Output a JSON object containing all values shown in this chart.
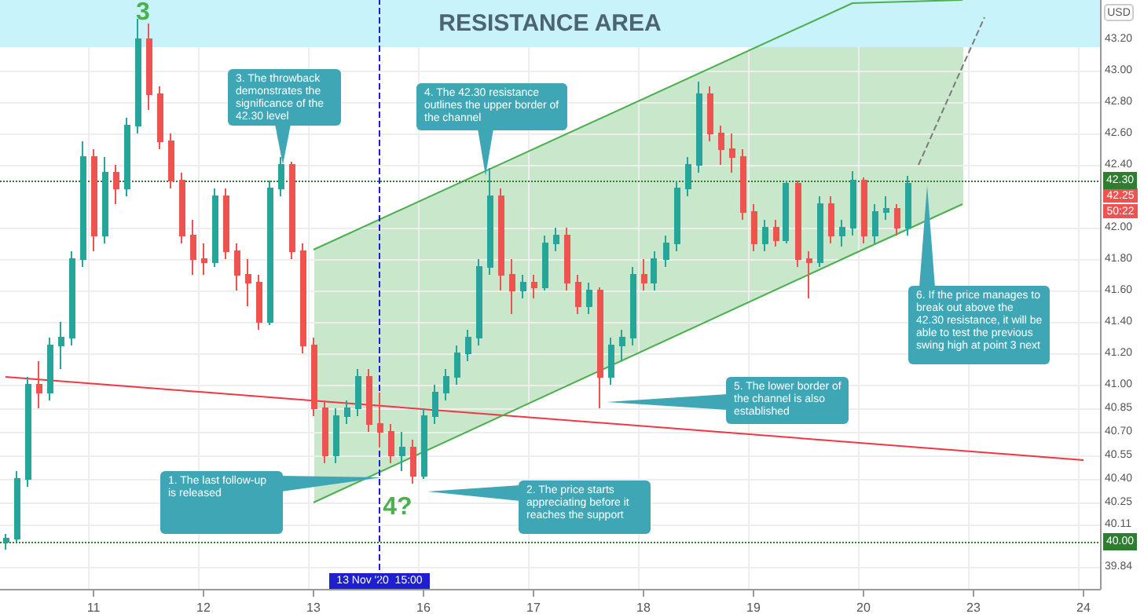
{
  "chart_data": {
    "type": "candlestick",
    "ylabel": "USD",
    "categories": [
      null,
      null,
      null,
      null,
      null,
      null,
      null,
      null,
      "11",
      null,
      null,
      null,
      null,
      null,
      null,
      null,
      null,
      null,
      "12",
      null,
      null,
      null,
      null,
      null,
      null,
      null,
      null,
      null,
      "13",
      null,
      null,
      null,
      null,
      null,
      "13 Nov '20  15:00",
      null,
      null,
      null,
      "16",
      null,
      null,
      null,
      null,
      null,
      null,
      null,
      null,
      null,
      "17",
      null,
      null,
      null,
      null,
      null,
      null,
      null,
      null,
      null,
      "18",
      null,
      null,
      null,
      null,
      null,
      null,
      null,
      null,
      null,
      "19",
      null,
      null,
      null,
      null,
      null,
      null,
      null,
      null,
      null,
      "20",
      null,
      null,
      null,
      null,
      null,
      null,
      null,
      null,
      null,
      "23",
      null,
      null,
      null,
      null,
      null,
      null,
      null,
      null,
      null,
      "24",
      null
    ],
    "ylim": [
      39.7,
      43.45
    ],
    "yticks": [
      {
        "value": 39.84,
        "label": "39.84"
      },
      {
        "value": 40.11,
        "label": "40.11"
      },
      {
        "value": 40.25,
        "label": "40.25"
      },
      {
        "value": 40.4,
        "label": "40.40"
      },
      {
        "value": 40.55,
        "label": "40.55"
      },
      {
        "value": 40.7,
        "label": "40.70"
      },
      {
        "value": 40.85,
        "label": "40.85"
      },
      {
        "value": 41,
        "label": "41.00"
      },
      {
        "value": 41.2,
        "label": "41.20"
      },
      {
        "value": 41.4,
        "label": "41.40"
      },
      {
        "value": 41.6,
        "label": "41.60"
      },
      {
        "value": 41.8,
        "label": "41.80"
      },
      {
        "value": 42,
        "label": "42.00"
      },
      {
        "value": 42.4,
        "label": "42.40"
      },
      {
        "value": 42.6,
        "label": "42.60"
      },
      {
        "value": 42.8,
        "label": "42.80"
      },
      {
        "value": 43,
        "label": "43.00"
      },
      {
        "value": 43.2,
        "label": "43.20"
      }
    ],
    "grid": true,
    "series": [
      {
        "ohlc": [
          [
            40,
            40.05,
            39.95,
            40.02
          ],
          [
            40.02,
            40.45,
            40,
            40.4
          ],
          [
            40.4,
            41.05,
            40.35,
            41
          ],
          [
            41,
            41.15,
            40.85,
            40.95
          ],
          [
            40.95,
            41.3,
            40.9,
            41.25
          ],
          [
            41.25,
            41.4,
            41.1,
            41.3
          ],
          [
            41.3,
            41.85,
            41.25,
            41.8
          ],
          [
            41.8,
            42.55,
            41.75,
            42.45
          ],
          [
            42.45,
            42.5,
            41.85,
            41.95
          ],
          [
            41.95,
            42.45,
            41.9,
            42.35
          ],
          [
            42.35,
            42.4,
            42.15,
            42.25
          ],
          [
            42.25,
            42.7,
            42.2,
            42.65
          ],
          [
            42.65,
            43.33,
            42.6,
            43.2
          ],
          [
            43.2,
            43.3,
            42.75,
            42.85
          ],
          [
            42.85,
            42.9,
            42.5,
            42.55
          ],
          [
            42.55,
            42.6,
            42.25,
            42.3
          ],
          [
            42.3,
            42.35,
            41.9,
            41.95
          ],
          [
            41.95,
            42.05,
            41.7,
            41.8
          ],
          [
            41.8,
            41.9,
            41.7,
            41.78
          ],
          [
            41.78,
            42.25,
            41.75,
            42.2
          ],
          [
            42.2,
            42.25,
            41.8,
            41.85
          ],
          [
            41.85,
            41.9,
            41.6,
            41.7
          ],
          [
            41.7,
            41.8,
            41.5,
            41.65
          ],
          [
            41.65,
            41.7,
            41.35,
            41.4
          ],
          [
            41.4,
            42.3,
            41.38,
            42.25
          ],
          [
            42.25,
            42.45,
            42.2,
            42.4
          ],
          [
            42.4,
            42.42,
            41.8,
            41.85
          ],
          [
            41.85,
            41.9,
            41.2,
            41.25
          ],
          [
            41.25,
            41.3,
            40.8,
            40.85
          ],
          [
            40.85,
            40.9,
            40.5,
            40.55
          ],
          [
            40.55,
            40.85,
            40.5,
            40.8
          ],
          [
            40.8,
            40.9,
            40.75,
            40.85
          ],
          [
            40.85,
            41.1,
            40.8,
            41.05
          ],
          [
            41.05,
            41.1,
            40.7,
            40.75
          ],
          [
            40.75,
            40.95,
            40.6,
            40.7
          ],
          [
            40.7,
            40.75,
            40.5,
            40.55
          ],
          [
            40.55,
            40.7,
            40.45,
            40.6
          ],
          [
            40.6,
            40.65,
            40.37,
            40.42
          ],
          [
            40.42,
            40.85,
            40.4,
            40.8
          ],
          [
            40.8,
            41,
            40.75,
            40.95
          ],
          [
            40.95,
            41.1,
            40.9,
            41.05
          ],
          [
            41.05,
            41.25,
            41,
            41.2
          ],
          [
            41.2,
            41.35,
            41.15,
            41.3
          ],
          [
            41.3,
            41.8,
            41.25,
            41.75
          ],
          [
            41.75,
            42.38,
            41.7,
            42.2
          ],
          [
            42.2,
            42.25,
            41.6,
            41.7
          ],
          [
            41.7,
            41.8,
            41.45,
            41.6
          ],
          [
            41.6,
            41.7,
            41.55,
            41.65
          ],
          [
            41.65,
            41.7,
            41.55,
            41.62
          ],
          [
            41.62,
            41.95,
            41.6,
            41.9
          ],
          [
            41.9,
            42,
            41.85,
            41.95
          ],
          [
            41.95,
            42,
            41.6,
            41.65
          ],
          [
            41.65,
            41.7,
            41.45,
            41.5
          ],
          [
            41.5,
            41.65,
            41.45,
            41.6
          ],
          [
            41.6,
            41.62,
            40.85,
            41.05
          ],
          [
            41.05,
            41.3,
            41,
            41.25
          ],
          [
            41.25,
            41.35,
            41.15,
            41.3
          ],
          [
            41.3,
            41.75,
            41.25,
            41.7
          ],
          [
            41.7,
            41.8,
            41.6,
            41.65
          ],
          [
            41.65,
            41.85,
            41.6,
            41.8
          ],
          [
            41.8,
            41.95,
            41.75,
            41.9
          ],
          [
            41.9,
            42.3,
            41.85,
            42.25
          ],
          [
            42.25,
            42.45,
            42.2,
            42.4
          ],
          [
            42.4,
            42.93,
            42.35,
            42.85
          ],
          [
            42.85,
            42.9,
            42.55,
            42.6
          ],
          [
            42.6,
            42.65,
            42.4,
            42.5
          ],
          [
            42.5,
            42.6,
            42.35,
            42.45
          ],
          [
            42.45,
            42.5,
            42.05,
            42.1
          ],
          [
            42.1,
            42.15,
            41.85,
            41.9
          ],
          [
            41.9,
            42.05,
            41.85,
            42
          ],
          [
            42,
            42.05,
            41.88,
            41.92
          ],
          [
            41.92,
            42.3,
            41.9,
            42.28
          ],
          [
            42.28,
            42.3,
            41.75,
            41.8
          ],
          [
            41.8,
            41.85,
            41.55,
            41.78
          ],
          [
            41.78,
            42.2,
            41.75,
            42.15
          ],
          [
            42.15,
            42.2,
            41.9,
            41.95
          ],
          [
            41.95,
            42.05,
            41.88,
            42
          ],
          [
            42,
            42.36,
            41.95,
            42.3
          ],
          [
            42.3,
            42.32,
            41.9,
            41.95
          ],
          [
            41.95,
            42.15,
            41.9,
            42.1
          ],
          [
            42.1,
            42.2,
            42.05,
            42.12
          ],
          [
            42.12,
            42.15,
            41.95,
            42
          ],
          [
            42,
            42.33,
            41.95,
            42.28
          ],
          null,
          null,
          null,
          null,
          null,
          null,
          null,
          null,
          null,
          null,
          null,
          null,
          null,
          null,
          null,
          null,
          null
        ],
        "colors": [
          "#26a69a",
          "#26a69a",
          "#26a69a",
          "#ef5350",
          "#26a69a",
          "#26a69a",
          "#26a69a",
          "#26a69a",
          "#ef5350",
          "#26a69a",
          "#ef5350",
          "#26a69a",
          "#26a69a",
          "#ef5350",
          "#ef5350",
          "#ef5350",
          "#ef5350",
          "#ef5350",
          "#ef5350",
          "#26a69a",
          "#ef5350",
          "#ef5350",
          "#ef5350",
          "#ef5350",
          "#26a69a",
          "#26a69a",
          "#ef5350",
          "#ef5350",
          "#ef5350",
          "#ef5350",
          "#26a69a",
          "#26a69a",
          "#26a69a",
          "#ef5350",
          "#ef5350",
          "#ef5350",
          "#26a69a",
          "#ef5350",
          "#26a69a",
          "#26a69a",
          "#26a69a",
          "#26a69a",
          "#26a69a",
          "#26a69a",
          "#26a69a",
          "#ef5350",
          "#ef5350",
          "#26a69a",
          "#ef5350",
          "#26a69a",
          "#26a69a",
          "#ef5350",
          "#ef5350",
          "#26a69a",
          "#ef5350",
          "#26a69a",
          "#26a69a",
          "#26a69a",
          "#ef5350",
          "#26a69a",
          "#26a69a",
          "#26a69a",
          "#26a69a",
          "#26a69a",
          "#ef5350",
          "#ef5350",
          "#ef5350",
          "#ef5350",
          "#ef5350",
          "#26a69a",
          "#ef5350",
          "#26a69a",
          "#ef5350",
          "#ef5350",
          "#26a69a",
          "#ef5350",
          "#26a69a",
          "#26a69a",
          "#ef5350",
          "#26a69a",
          "#26a69a",
          "#ef5350",
          "#26a69a",
          null,
          null,
          null,
          null,
          null,
          null,
          null,
          null,
          null,
          null,
          null,
          null,
          null,
          null,
          null,
          null,
          null
        ]
      },
      {
        "type": "line",
        "color": "#f23645",
        "values": [
          41.05,
          null,
          null,
          null,
          null,
          null,
          null,
          null,
          null,
          null,
          null,
          null,
          null,
          null,
          null,
          null,
          null,
          null,
          null,
          null,
          null,
          null,
          null,
          null,
          null,
          null,
          null,
          null,
          null,
          null,
          null,
          null,
          null,
          null,
          null,
          null,
          null,
          null,
          null,
          null,
          null,
          null,
          null,
          null,
          null,
          null,
          null,
          null,
          null,
          null,
          null,
          null,
          null,
          null,
          null,
          null,
          null,
          null,
          null,
          null,
          null,
          null,
          null,
          null,
          null,
          null,
          null,
          null,
          null,
          null,
          null,
          null,
          null,
          null,
          null,
          null,
          null,
          null,
          null,
          null,
          null,
          null,
          null,
          null,
          null,
          null,
          null,
          null,
          null,
          null,
          null,
          null,
          null,
          null,
          null,
          null,
          null,
          null,
          40.52,
          null
        ]
      },
      {
        "type": "line",
        "color": "#4caf50",
        "values": [
          null,
          null,
          null,
          null,
          null,
          null,
          null,
          null,
          null,
          null,
          null,
          null,
          null,
          null,
          null,
          null,
          null,
          null,
          null,
          null,
          null,
          null,
          null,
          null,
          null,
          null,
          null,
          null,
          41.86,
          null,
          null,
          null,
          null,
          null,
          null,
          null,
          null,
          null,
          null,
          null,
          null,
          null,
          null,
          null,
          null,
          null,
          null,
          null,
          null,
          null,
          null,
          null,
          null,
          null,
          null,
          null,
          null,
          null,
          null,
          null,
          null,
          null,
          null,
          null,
          null,
          null,
          null,
          null,
          null,
          null,
          null,
          null,
          null,
          null,
          null,
          null,
          null,
          43.43,
          null,
          null,
          null,
          null,
          null,
          null,
          null,
          null,
          null,
          43.45,
          null,
          null,
          null,
          null,
          null,
          null,
          null,
          null,
          null,
          null,
          null,
          null
        ]
      },
      {
        "type": "line",
        "color": "#4caf50",
        "values": [
          null,
          null,
          null,
          null,
          null,
          null,
          null,
          null,
          null,
          null,
          null,
          null,
          null,
          null,
          null,
          null,
          null,
          null,
          null,
          null,
          null,
          null,
          null,
          null,
          null,
          null,
          null,
          null,
          40.25,
          null,
          null,
          null,
          null,
          null,
          null,
          null,
          null,
          null,
          null,
          null,
          null,
          null,
          null,
          null,
          null,
          null,
          null,
          null,
          null,
          null,
          null,
          null,
          null,
          null,
          null,
          null,
          null,
          null,
          null,
          null,
          null,
          null,
          null,
          null,
          null,
          null,
          null,
          null,
          null,
          null,
          null,
          null,
          null,
          null,
          null,
          null,
          null,
          41.83,
          null,
          null,
          null,
          null,
          null,
          null,
          null,
          null,
          null,
          42.15,
          null,
          null,
          null,
          null,
          null,
          null,
          null,
          null,
          null,
          null,
          null,
          null
        ]
      },
      {
        "type": "line",
        "color": "#7a7a7a",
        "line_style": "dashed",
        "values": [
          null,
          null,
          null,
          null,
          null,
          null,
          null,
          null,
          null,
          null,
          null,
          null,
          null,
          null,
          null,
          null,
          null,
          null,
          null,
          null,
          null,
          null,
          null,
          null,
          null,
          null,
          null,
          null,
          null,
          null,
          null,
          null,
          null,
          null,
          null,
          null,
          null,
          null,
          null,
          null,
          null,
          null,
          null,
          null,
          null,
          null,
          null,
          null,
          null,
          null,
          null,
          null,
          null,
          null,
          null,
          null,
          null,
          null,
          null,
          null,
          null,
          null,
          null,
          null,
          null,
          null,
          null,
          null,
          null,
          null,
          null,
          null,
          null,
          null,
          null,
          null,
          null,
          null,
          null,
          null,
          null,
          null,
          null,
          42.4,
          null,
          null,
          null,
          null,
          null,
          43.34,
          null,
          null,
          null,
          null,
          null,
          null,
          null,
          null,
          null,
          null
        ]
      }
    ],
    "ref_lines": [
      {
        "axis": "y",
        "value": 42.3,
        "label": "42.30",
        "color": "#2e7d32",
        "line_style": "dotted"
      },
      {
        "axis": "y",
        "value": 40,
        "label": "40.00",
        "color": "#2e7d32",
        "line_style": "dotted"
      },
      {
        "axis": "x",
        "value": "13 Nov '20  15:00",
        "color": "#1f1fd0",
        "line_style": "dashed"
      }
    ],
    "bands": [
      {
        "axis": "y",
        "from": 43.15,
        "to": 43.45,
        "label": "RESISTANCE AREA",
        "color": "#c9f3fa"
      }
    ],
    "annotations": [
      "3",
      "4?",
      "1. The last follow-up is released",
      "2. The price starts appreciating before it reaches the support",
      "3. The throwback demonstrates the significance of the 42.30 level",
      "4. The 42.30 resistance outlines the upper border of the channel",
      "5. The lower border of the channel is also established",
      "6. If the price manages to break out above the 42.30 resistance, it will be able to test the previous swing high at point 3 next",
      "42.25",
      "50:22"
    ]
  }
}
